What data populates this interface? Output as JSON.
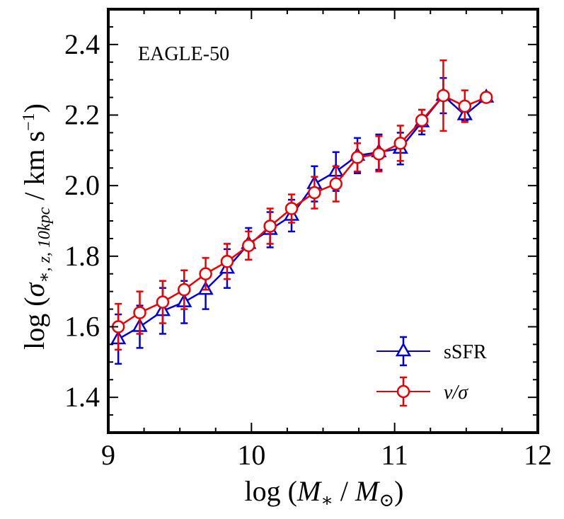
{
  "chart_data": {
    "type": "line",
    "title": "",
    "annotation": "EAGLE-50",
    "xlabel": {
      "prefix": "log (",
      "M": "M",
      "sub1": "∗",
      "slash": " / ",
      "M2": "M",
      "sub2": "⊙",
      "suffix": ")"
    },
    "ylabel": {
      "prefix": "log (",
      "sigma": "σ",
      "sub": "∗, z, 10kpc",
      "suffix": " / km s",
      "sup": "−1",
      "close": ")"
    },
    "xlim": [
      9,
      12
    ],
    "ylim": [
      1.3,
      2.5
    ],
    "xticks": [
      9,
      10,
      11,
      12
    ],
    "xtick_labels": [
      "9",
      "10",
      "11",
      "12"
    ],
    "yticks": [
      1.4,
      1.6,
      1.8,
      2.0,
      2.2,
      2.4
    ],
    "ytick_labels": [
      "1.4",
      "1.6",
      "1.8",
      "2.0",
      "2.2",
      "2.4"
    ],
    "legend_position": "lower-right",
    "series": [
      {
        "name": "sSFR",
        "color": "#0000dd",
        "marker": "triangle",
        "x": [
          9.07,
          9.22,
          9.38,
          9.53,
          9.68,
          9.83,
          9.98,
          10.13,
          10.28,
          10.44,
          10.59,
          10.74,
          10.89,
          11.04,
          11.19,
          11.34,
          11.49,
          11.64
        ],
        "y": [
          1.565,
          1.6,
          1.645,
          1.67,
          1.705,
          1.765,
          1.835,
          1.875,
          1.915,
          2.005,
          2.04,
          2.085,
          2.095,
          2.105,
          2.18,
          2.255,
          2.2,
          2.25
        ],
        "yerr": [
          0.07,
          0.06,
          0.065,
          0.06,
          0.055,
          0.055,
          0.045,
          0.05,
          0.045,
          0.05,
          0.055,
          0.05,
          0.05,
          0.045,
          0.035,
          0.05,
          0.015,
          0.01
        ]
      },
      {
        "name": "v/σ",
        "color": "#ee0000",
        "marker": "circle",
        "x": [
          9.07,
          9.22,
          9.38,
          9.53,
          9.68,
          9.83,
          9.98,
          10.13,
          10.28,
          10.44,
          10.59,
          10.74,
          10.89,
          11.04,
          11.19,
          11.34,
          11.49,
          11.64
        ],
        "y": [
          1.6,
          1.64,
          1.67,
          1.705,
          1.75,
          1.785,
          1.83,
          1.885,
          1.935,
          1.98,
          2.005,
          2.08,
          2.09,
          2.12,
          2.185,
          2.255,
          2.225,
          2.25
        ],
        "yerr": [
          0.065,
          0.06,
          0.06,
          0.055,
          0.045,
          0.05,
          0.04,
          0.05,
          0.04,
          0.045,
          0.05,
          0.04,
          0.05,
          0.05,
          0.03,
          0.1,
          0.045,
          0.01
        ]
      }
    ]
  }
}
